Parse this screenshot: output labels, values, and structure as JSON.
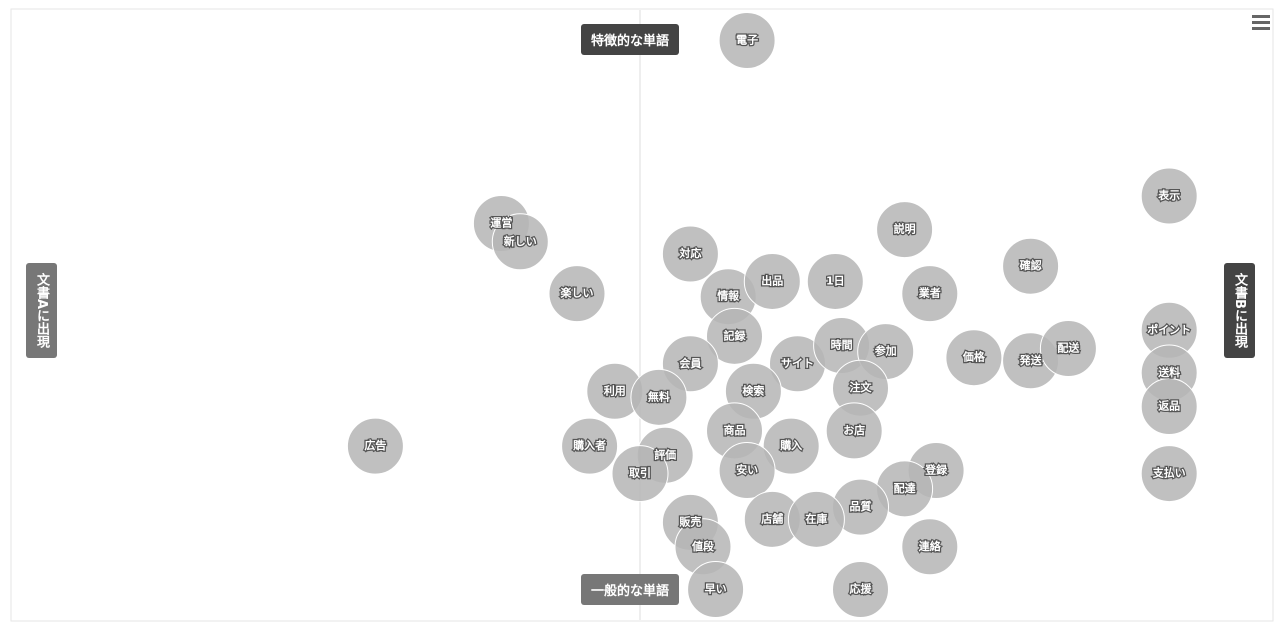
{
  "chart_data": {
    "type": "bubble",
    "top_label": "特徴的な単語",
    "bottom_label": "一般的な単語",
    "left_label": "文書Aに出現",
    "right_label": "文書Bに出現",
    "xlim": [
      -1,
      1
    ],
    "ylim": [
      -1,
      1
    ],
    "color": "#b5b5b5",
    "labels": [
      "電子",
      "運営",
      "新しい",
      "楽しい",
      "広告",
      "対応",
      "情報",
      "出品",
      "1日",
      "説明",
      "業者",
      "確認",
      "表示",
      "記録",
      "サイト",
      "時間",
      "参加",
      "注文",
      "検索",
      "会員",
      "利用",
      "無料",
      "価格",
      "発送",
      "配送",
      "ポイント",
      "送料",
      "返品",
      "支払い",
      "商品",
      "購入",
      "お店",
      "購入者",
      "評価",
      "取引",
      "安い",
      "登録",
      "配達",
      "品質",
      "販売",
      "店舗",
      "在庫",
      "値段",
      "連絡",
      "応援",
      "早い"
    ],
    "x": [
      0.17,
      -0.22,
      -0.19,
      -0.1,
      -0.42,
      0.08,
      0.14,
      0.21,
      0.31,
      0.42,
      0.46,
      0.62,
      0.84,
      0.15,
      0.25,
      0.32,
      0.39,
      0.35,
      0.18,
      0.08,
      -0.04,
      0.03,
      0.53,
      0.62,
      0.68,
      0.84,
      0.84,
      0.84,
      0.84,
      0.15,
      0.24,
      0.34,
      -0.08,
      0.04,
      0.0,
      0.17,
      0.47,
      0.42,
      0.35,
      0.08,
      0.21,
      0.28,
      0.1,
      0.46,
      0.35,
      0.12
    ],
    "values": [
      0.9,
      0.3,
      0.24,
      0.07,
      -0.43,
      0.2,
      0.06,
      0.11,
      0.11,
      0.28,
      0.07,
      0.16,
      0.39,
      -0.07,
      -0.16,
      -0.1,
      -0.12,
      -0.24,
      -0.25,
      -0.16,
      -0.25,
      -0.27,
      -0.14,
      -0.15,
      -0.11,
      -0.05,
      -0.19,
      -0.3,
      -0.52,
      -0.38,
      -0.43,
      -0.38,
      -0.43,
      -0.46,
      -0.52,
      -0.51,
      -0.51,
      -0.57,
      -0.63,
      -0.68,
      -0.67,
      -0.67,
      -0.76,
      -0.76,
      -0.9,
      -0.9
    ]
  }
}
